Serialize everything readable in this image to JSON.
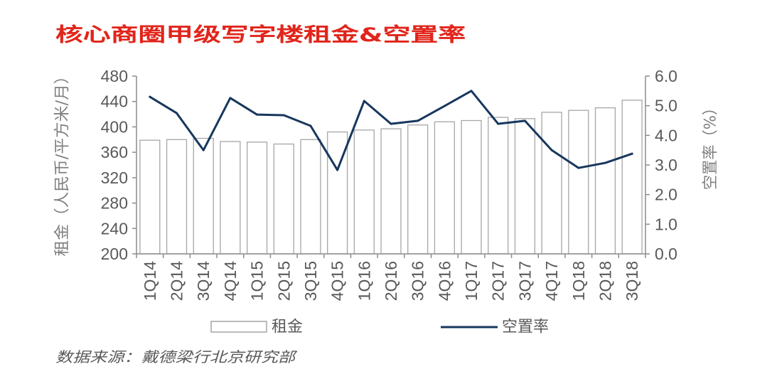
{
  "chart_data": {
    "type": "bar",
    "title": "核心商圈甲级写字楼租金&空置率",
    "categories": [
      "1Q14",
      "2Q14",
      "3Q14",
      "4Q14",
      "1Q15",
      "2Q15",
      "3Q15",
      "4Q15",
      "1Q16",
      "2Q16",
      "3Q16",
      "4Q16",
      "1Q17",
      "2Q17",
      "3Q17",
      "4Q17",
      "1Q18",
      "2Q18",
      "3Q18"
    ],
    "series": [
      {
        "name": "租金",
        "type": "bar",
        "axis": "left",
        "values": [
          379,
          380,
          382,
          377,
          376,
          373,
          380,
          392,
          395,
          397,
          403,
          408,
          410,
          415,
          413,
          423,
          426,
          430,
          442
        ]
      },
      {
        "name": "空置率",
        "type": "line",
        "axis": "right",
        "values": [
          5.3,
          4.75,
          3.5,
          5.26,
          4.7,
          4.68,
          4.32,
          2.83,
          5.16,
          4.39,
          4.49,
          4.99,
          5.5,
          4.39,
          4.49,
          3.5,
          2.9,
          3.07,
          3.38
        ]
      }
    ],
    "ylabel": "租金（人民币/平方米/月）",
    "y2label": "空置率（%）",
    "ylim": [
      200,
      480
    ],
    "y2lim": [
      0,
      6
    ],
    "y_ticks": [
      "200",
      "240",
      "280",
      "320",
      "360",
      "400",
      "440",
      "480"
    ],
    "y2_ticks": [
      "0.0",
      "1.0",
      "2.0",
      "3.0",
      "4.0",
      "5.0",
      "6.0"
    ],
    "grid": false,
    "legend": "bottom",
    "colors": {
      "title": "#e1251b",
      "bar_fill": "#ffffff",
      "bar_stroke": "#a6a6a6",
      "line": "#17375e"
    }
  },
  "source": "数据来源：戴德梁行北京研究部"
}
